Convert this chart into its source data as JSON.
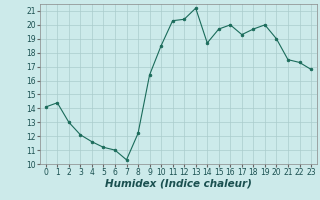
{
  "x": [
    0,
    1,
    2,
    3,
    4,
    5,
    6,
    7,
    8,
    9,
    10,
    11,
    12,
    13,
    14,
    15,
    16,
    17,
    18,
    19,
    20,
    21,
    22,
    23
  ],
  "y": [
    14.1,
    14.4,
    13.0,
    12.1,
    11.6,
    11.2,
    11.0,
    10.3,
    12.2,
    16.4,
    18.5,
    20.3,
    20.4,
    21.2,
    18.7,
    19.7,
    20.0,
    19.3,
    19.7,
    20.0,
    19.0,
    17.5,
    17.3,
    16.8
  ],
  "line_color": "#1a6b5a",
  "marker": "o",
  "marker_size": 2,
  "xlabel": "Humidex (Indice chaleur)",
  "xlim": [
    -0.5,
    23.5
  ],
  "ylim": [
    10,
    21.5
  ],
  "yticks": [
    10,
    11,
    12,
    13,
    14,
    15,
    16,
    17,
    18,
    19,
    20,
    21
  ],
  "xticks": [
    0,
    1,
    2,
    3,
    4,
    5,
    6,
    7,
    8,
    9,
    10,
    11,
    12,
    13,
    14,
    15,
    16,
    17,
    18,
    19,
    20,
    21,
    22,
    23
  ],
  "bg_color": "#cceaea",
  "grid_color": "#aacccc",
  "tick_fontsize": 5.5,
  "xlabel_fontsize": 7.5,
  "line_width": 0.8
}
